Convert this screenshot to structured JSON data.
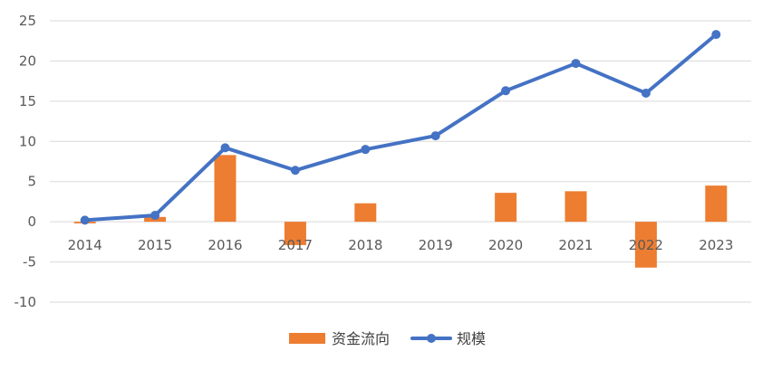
{
  "chart_data": {
    "type": "bar+line",
    "categories": [
      "2014",
      "2015",
      "2016",
      "2017",
      "2018",
      "2019",
      "2020",
      "2021",
      "2022",
      "2023"
    ],
    "series": [
      {
        "name": "资金流向",
        "type": "bar",
        "color": "#ED7D31",
        "values": [
          -0.2,
          0.6,
          8.3,
          -2.9,
          2.3,
          0.0,
          3.6,
          3.8,
          -5.7,
          4.5
        ]
      },
      {
        "name": "规模",
        "type": "line",
        "color": "#4472C4",
        "values": [
          0.2,
          0.8,
          9.2,
          6.4,
          9.0,
          10.7,
          16.3,
          19.7,
          16.0,
          23.3
        ]
      }
    ],
    "yticks": [
      "25",
      "20",
      "15",
      "10",
      "5",
      "0",
      "-5",
      "-10"
    ],
    "ylim": [
      -10,
      25
    ],
    "grid": true,
    "legend_position": "bottom"
  }
}
